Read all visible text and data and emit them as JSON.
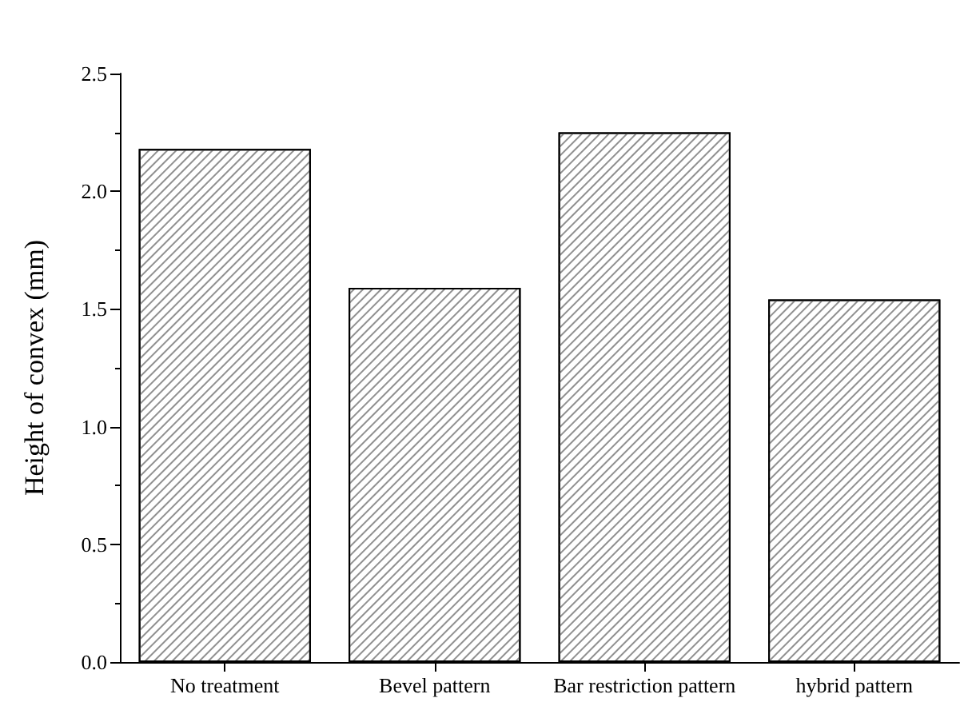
{
  "chart_data": {
    "type": "bar",
    "ylabel": "Height of convex (mm)",
    "categories": [
      "No treatment",
      "Bevel pattern",
      "Bar restriction pattern",
      "hybrid pattern"
    ],
    "values": [
      2.18,
      1.59,
      2.25,
      1.54
    ],
    "color": "#ffffff",
    "ylim": [
      0,
      2.5
    ],
    "yticks": [
      {
        "value": 0,
        "label": "0.0"
      },
      0.5,
      {
        "value": 1,
        "label": "1.0"
      },
      1.5,
      {
        "value": 2,
        "label": "2.0"
      },
      2.5
    ],
    "grid": false
  }
}
